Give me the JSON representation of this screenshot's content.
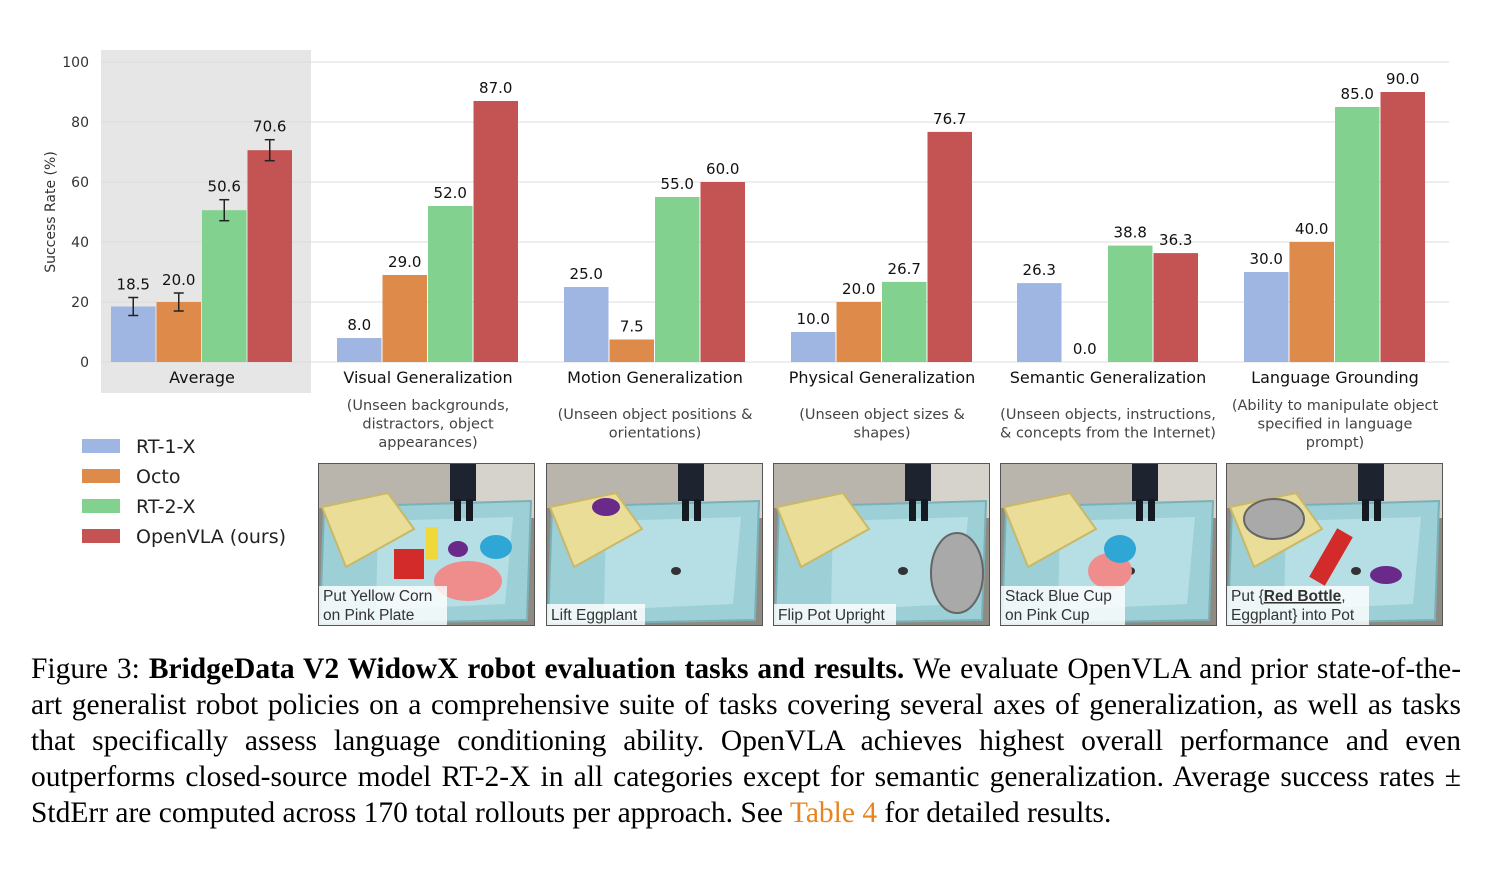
{
  "chart_data": {
    "type": "bar",
    "ylabel": "Success Rate (%)",
    "ylim": [
      0,
      100
    ],
    "yticks": [
      0,
      20,
      40,
      60,
      80,
      100
    ],
    "grid": true,
    "legend_position": "left",
    "series": [
      {
        "name": "RT-1-X",
        "color": "#9fb6e2",
        "values": [
          18.5,
          8.0,
          25.0,
          10.0,
          26.3,
          30.0
        ],
        "labels": [
          "18.5",
          "8.0",
          "25.0",
          "10.0",
          "26.3",
          "30.0"
        ]
      },
      {
        "name": "Octo",
        "color": "#dd8a4b",
        "values": [
          20.0,
          29.0,
          7.5,
          20.0,
          0.0,
          40.0
        ],
        "labels": [
          "20.0",
          "29.0",
          "7.5",
          "20.0",
          "0.0",
          "40.0"
        ]
      },
      {
        "name": "RT-2-X",
        "color": "#82d18f",
        "values": [
          50.6,
          52.0,
          55.0,
          26.7,
          38.8,
          85.0
        ],
        "labels": [
          "50.6",
          "52.0",
          "55.0",
          "26.7",
          "38.8",
          "85.0"
        ]
      },
      {
        "name": "OpenVLA (ours)",
        "color": "#c45354",
        "values": [
          70.6,
          87.0,
          60.0,
          76.7,
          36.3,
          90.0
        ],
        "labels": [
          "70.6",
          "87.0",
          "60.0",
          "76.7",
          "36.3",
          "90.0"
        ]
      }
    ],
    "average_stderr": [
      3.0,
      3.0,
      3.5,
      3.5
    ],
    "categories": [
      "Average",
      "Visual Generalization",
      "Motion Generalization",
      "Physical Generalization",
      "Semantic Generalization",
      "Language Grounding"
    ],
    "category_descriptions": [
      [],
      [
        "(Unseen backgrounds,",
        "distractors, object",
        "appearances)"
      ],
      [
        "(Unseen object positions &",
        "orientations)"
      ],
      [
        "(Unseen object sizes &",
        "shapes)"
      ],
      [
        "(Unseen objects, instructions,",
        "& concepts from the Internet)"
      ],
      [
        "(Ability to manipulate object",
        "specified in language",
        "prompt)"
      ]
    ]
  },
  "thumbnails": [
    {
      "lines": [
        "Put Yellow Corn",
        "on Pink Plate"
      ]
    },
    {
      "lines": [
        "Lift Eggplant"
      ]
    },
    {
      "lines": [
        "Flip Pot Upright"
      ]
    },
    {
      "lines": [
        "Stack Blue Cup",
        "on Pink Cup"
      ]
    },
    {
      "line1_prefix": "Put {",
      "line1_bold": "Red Bottle",
      "line1_suffix": ",",
      "line2": "Eggplant} into Pot"
    }
  ],
  "caption": {
    "figure": "Figure 3:",
    "title": "BridgeData V2 WidowX robot evaluation tasks and results.",
    "body1": "We evaluate OpenVLA and prior state-of-the-art generalist robot policies on a comprehensive suite of tasks covering several axes of generalization, as well as tasks that specifically assess language conditioning ability. OpenVLA achieves highest overall performance and even outperforms closed-source model RT-2-X in all categories except for semantic generalization. Average success rates ± StdErr are computed across 170 total rollouts per approach. See",
    "link": "Table 4",
    "body2": "for detailed results."
  }
}
